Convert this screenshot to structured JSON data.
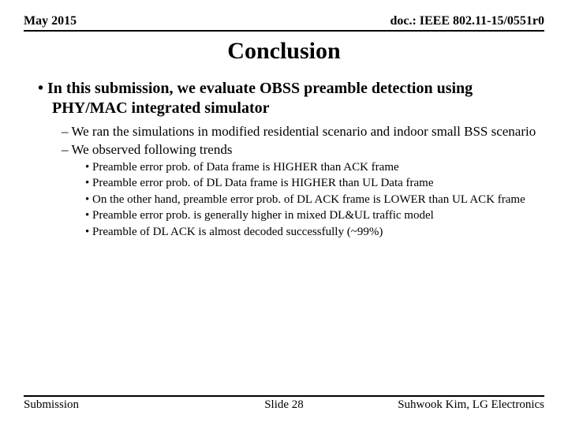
{
  "header": {
    "date": "May 2015",
    "docref": "doc.: IEEE 802.11-15/0551r0"
  },
  "title": "Conclusion",
  "bullets": {
    "l1": "In this submission, we evaluate OBSS preamble detection using PHY/MAC integrated simulator",
    "l2a": "We ran the simulations in modified residential scenario and indoor small BSS scenario",
    "l2b": "We observed following trends",
    "l3a": "Preamble error prob. of Data frame is HIGHER than ACK frame",
    "l3b": "Preamble error prob. of DL Data frame is HIGHER than UL Data frame",
    "l3c": "On the other hand, preamble error prob. of DL ACK frame is LOWER than UL ACK frame",
    "l3d": "Preamble error prob. is generally higher in mixed DL&UL traffic model",
    "l3e": "Preamble of DL ACK is almost decoded successfully (~99%)"
  },
  "footer": {
    "left": "Submission",
    "center": "Slide 28",
    "right": "Suhwook Kim, LG Electronics"
  }
}
